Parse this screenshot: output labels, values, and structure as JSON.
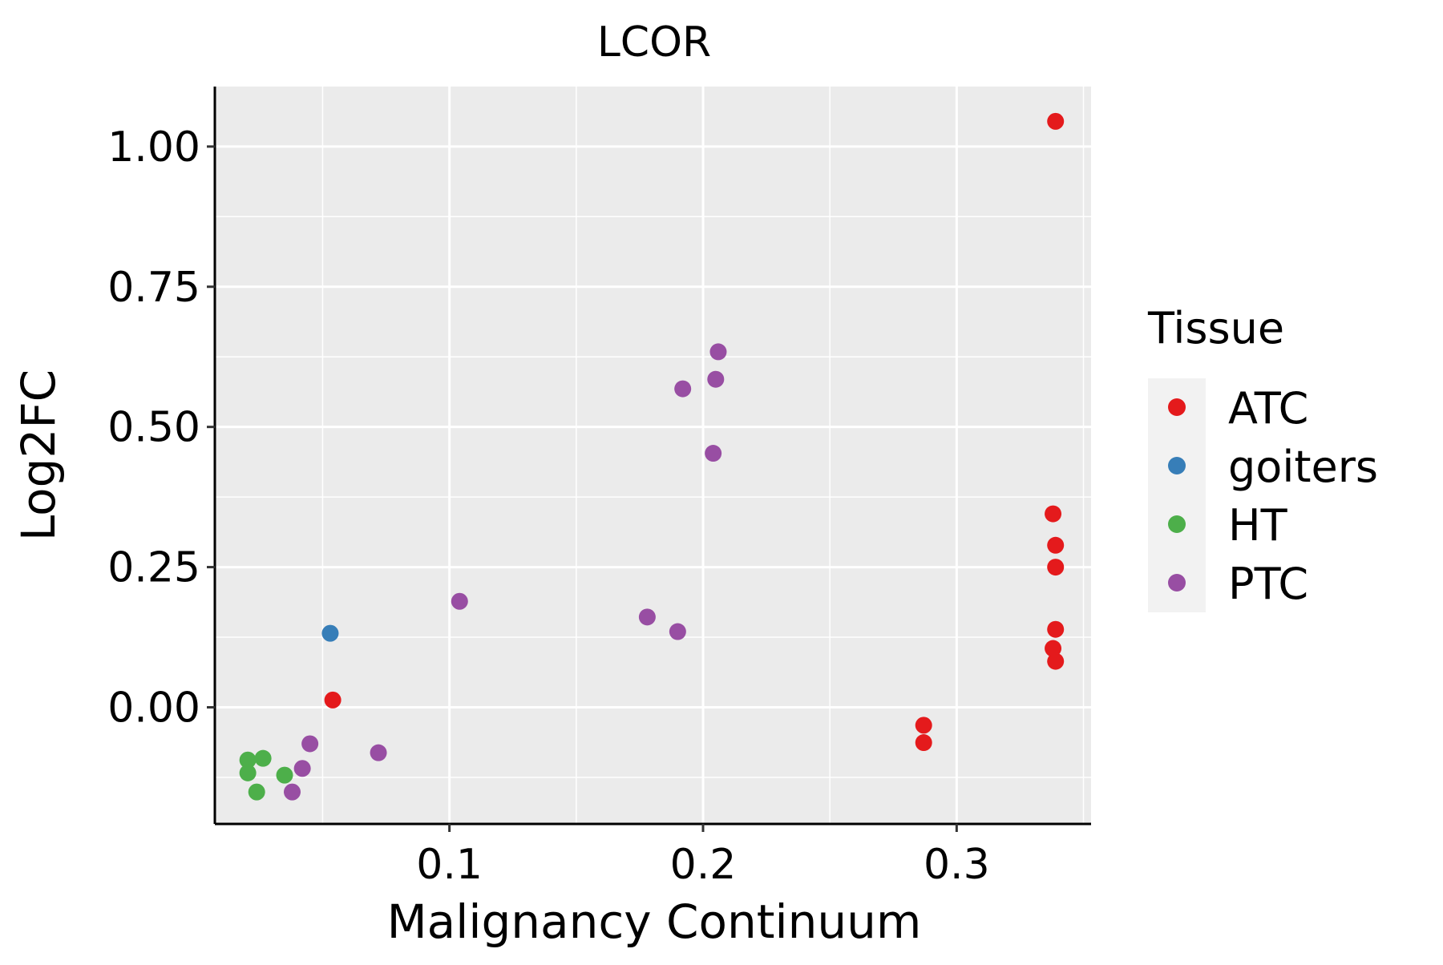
{
  "chart_data": {
    "type": "scatter",
    "title": "LCOR",
    "xlabel": "Malignancy Continuum",
    "ylabel": "Log2FC",
    "xlim": [
      0.0075,
      0.353
    ],
    "ylim": [
      -0.208,
      1.107
    ],
    "x_ticks": [
      0.1,
      0.2,
      0.3
    ],
    "x_tick_labels": [
      "0.1",
      "0.2",
      "0.3"
    ],
    "y_ticks": [
      0.0,
      0.25,
      0.5,
      0.75,
      1.0
    ],
    "y_tick_labels": [
      "0.00",
      "0.25",
      "0.50",
      "0.75",
      "1.00"
    ],
    "x_minor_ticks": [
      0.05,
      0.15,
      0.25,
      0.35
    ],
    "y_minor_ticks": [
      -0.125,
      0.125,
      0.375,
      0.625,
      0.875
    ],
    "grid": true,
    "panel_color": "#EBEBEB",
    "grid_color": "#FFFFFF",
    "legend": {
      "title": "Tissue",
      "position": "right",
      "entries": [
        {
          "label": "ATC",
          "color": "#E41A1C"
        },
        {
          "label": "goiters",
          "color": "#377EB8"
        },
        {
          "label": "HT",
          "color": "#4DAF4A"
        },
        {
          "label": "PTC",
          "color": "#984EA3"
        }
      ]
    },
    "series": [
      {
        "name": "ATC",
        "color": "#E41A1C",
        "points": [
          {
            "x": 0.339,
            "y": 1.045
          },
          {
            "x": 0.338,
            "y": 0.345
          },
          {
            "x": 0.339,
            "y": 0.289
          },
          {
            "x": 0.339,
            "y": 0.25
          },
          {
            "x": 0.339,
            "y": 0.139
          },
          {
            "x": 0.338,
            "y": 0.105
          },
          {
            "x": 0.339,
            "y": 0.082
          },
          {
            "x": 0.287,
            "y": -0.032
          },
          {
            "x": 0.287,
            "y": -0.063
          },
          {
            "x": 0.054,
            "y": 0.013
          }
        ]
      },
      {
        "name": "goiters",
        "color": "#377EB8",
        "points": [
          {
            "x": 0.053,
            "y": 0.132
          }
        ]
      },
      {
        "name": "HT",
        "color": "#4DAF4A",
        "points": [
          {
            "x": 0.0205,
            "y": -0.094
          },
          {
            "x": 0.0205,
            "y": -0.117
          },
          {
            "x": 0.0265,
            "y": -0.091
          },
          {
            "x": 0.024,
            "y": -0.151
          },
          {
            "x": 0.035,
            "y": -0.121
          }
        ]
      },
      {
        "name": "PTC",
        "color": "#984EA3",
        "points": [
          {
            "x": 0.206,
            "y": 0.634
          },
          {
            "x": 0.205,
            "y": 0.585
          },
          {
            "x": 0.192,
            "y": 0.568
          },
          {
            "x": 0.204,
            "y": 0.453
          },
          {
            "x": 0.104,
            "y": 0.189
          },
          {
            "x": 0.178,
            "y": 0.161
          },
          {
            "x": 0.19,
            "y": 0.135
          },
          {
            "x": 0.045,
            "y": -0.065
          },
          {
            "x": 0.072,
            "y": -0.081
          },
          {
            "x": 0.042,
            "y": -0.109
          },
          {
            "x": 0.038,
            "y": -0.151
          }
        ]
      }
    ]
  }
}
